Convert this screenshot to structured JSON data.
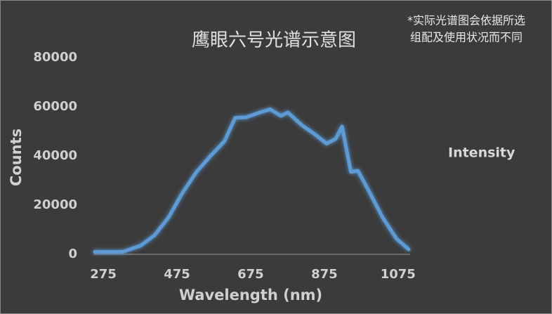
{
  "chart_data": {
    "type": "line",
    "title": "鹰眼六号光谱示意图",
    "annotation": [
      "*实际光谱图会依据所选",
      "组配及使用状况而不同"
    ],
    "x_label": "Wavelength (nm)",
    "y_label": "Counts",
    "x": [
      252,
      328,
      376,
      414,
      452,
      490,
      528,
      566,
      604,
      633,
      662,
      700,
      728,
      757,
      776,
      814,
      852,
      881,
      906,
      923,
      934,
      947,
      966,
      995,
      1033,
      1071,
      1104
    ],
    "series": [
      {
        "name": "Intensity",
        "color": "#5b9bd5",
        "values": [
          1000,
          1000,
          3500,
          7700,
          15000,
          25000,
          33500,
          40000,
          46000,
          55500,
          55700,
          57700,
          59000,
          56300,
          57700,
          52500,
          48500,
          45000,
          47000,
          52000,
          43500,
          33500,
          34000,
          26000,
          15000,
          6300,
          2000
        ]
      }
    ],
    "xlim": [
      252,
      1104
    ],
    "xticks": [
      275,
      475,
      675,
      875,
      1075
    ],
    "ylim": [
      0,
      80000
    ],
    "yticks": [
      0,
      20000,
      40000,
      60000,
      80000
    ],
    "legend": "right"
  }
}
